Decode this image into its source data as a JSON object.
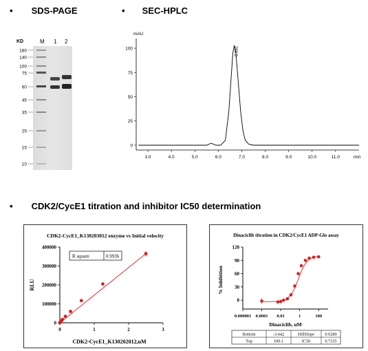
{
  "sections": {
    "sds_page": "SDS-PAGE",
    "sec_hplc": "SEC-HPLC",
    "titration": "CDK2/CycE1 titration and inhibitor  IC50 determination"
  },
  "gel": {
    "kd_label": "KD",
    "markers": [
      "180",
      "140",
      "100",
      "75",
      "60",
      "45",
      "35",
      "25",
      "15",
      "10"
    ],
    "lane_labels": [
      "M",
      "1",
      "2"
    ]
  },
  "chart_data": [
    {
      "type": "line",
      "id": "sec_hplc",
      "ylabel": "mAU",
      "xlabel": "min",
      "xlim": [
        2.5,
        12.0
      ],
      "ylim": [
        -5,
        110
      ],
      "x_ticks": [
        3.0,
        4.0,
        5.0,
        6.0,
        7.0,
        8.0,
        9.0,
        10.0,
        11.0
      ],
      "y_ticks": [
        0,
        25,
        50,
        75,
        100
      ],
      "peak_label": "6.681",
      "series": [
        {
          "x": [
            2.6,
            5.5,
            5.7,
            5.9,
            6.1,
            6.3,
            6.45,
            6.55,
            6.62,
            6.681,
            6.75,
            6.85,
            6.95,
            7.05,
            7.15,
            7.3,
            7.5,
            8.0,
            9.0,
            10.0,
            11.0,
            12.0
          ],
          "values": [
            0,
            0,
            2,
            0,
            0,
            5,
            35,
            70,
            95,
            103,
            95,
            65,
            35,
            15,
            5,
            1,
            0,
            0,
            0,
            0,
            0,
            0
          ]
        }
      ]
    },
    {
      "type": "scatter",
      "id": "titration",
      "title": "CDK2-CycE1_K130203012 enzyme vs Initial velocity",
      "xlabel": "CDK2-CycE1_K130202012,uM",
      "ylabel": "RLU",
      "xlim": [
        0,
        3
      ],
      "ylim": [
        0,
        400000
      ],
      "x_ticks": [
        "0",
        "1",
        "2",
        "3"
      ],
      "y_ticks": [
        "0",
        "100000",
        "200000",
        "300000",
        "400000"
      ],
      "rsquare_label": "R square",
      "rsquare_value": "0.9936",
      "points": [
        {
          "x": 0,
          "y": 0
        },
        {
          "x": 0.02,
          "y": 5000
        },
        {
          "x": 0.04,
          "y": 10000
        },
        {
          "x": 0.08,
          "y": 18000
        },
        {
          "x": 0.16,
          "y": 34000
        },
        {
          "x": 0.31,
          "y": 60000
        },
        {
          "x": 0.625,
          "y": 117000
        },
        {
          "x": 1.25,
          "y": 205000
        },
        {
          "x": 2.5,
          "y": 365000
        }
      ],
      "fit": [
        {
          "x": 0,
          "y": 0
        },
        {
          "x": 2.5,
          "y": 365000
        }
      ]
    },
    {
      "type": "scatter",
      "id": "ic50",
      "title": "Dinaciclib titration in CDK2/CycE1 ADP-Glo assay",
      "xlabel": "Dinaciclib, uM",
      "ylabel": "% Inhibition",
      "xscale": "log",
      "xlim": [
        1e-06,
        1000
      ],
      "ylim": [
        -20,
        120
      ],
      "x_ticks": [
        {
          "value": 1e-06,
          "label": "0.000001"
        },
        {
          "value": 0.0001,
          "label": "0.0001"
        },
        {
          "value": 0.01,
          "label": "0.01"
        },
        {
          "value": 1,
          "label": "1"
        },
        {
          "value": 100,
          "label": "100"
        }
      ],
      "y_ticks": [
        "0",
        "30",
        "60",
        "90",
        "120"
      ],
      "points": [
        {
          "x": 0.0001,
          "y": -2
        },
        {
          "x": 0.005,
          "y": -4
        },
        {
          "x": 0.01,
          "y": -3
        },
        {
          "x": 0.02,
          "y": 0
        },
        {
          "x": 0.05,
          "y": 3
        },
        {
          "x": 0.12,
          "y": 12
        },
        {
          "x": 0.3,
          "y": 32
        },
        {
          "x": 0.7,
          "y": 60
        },
        {
          "x": 1.5,
          "y": 78
        },
        {
          "x": 4,
          "y": 90
        },
        {
          "x": 10,
          "y": 95
        },
        {
          "x": 30,
          "y": 97
        },
        {
          "x": 100,
          "y": 98
        }
      ],
      "fit_params": {
        "bottom": -3.442,
        "top": 100.1,
        "ic50": 0.7335,
        "hillslope": 0.9289
      },
      "table": [
        [
          "Bottom",
          "-3.442",
          "HillSlope",
          "0.9289"
        ],
        [
          "Top",
          "100.1",
          "IC50",
          "0.7335"
        ]
      ]
    }
  ]
}
